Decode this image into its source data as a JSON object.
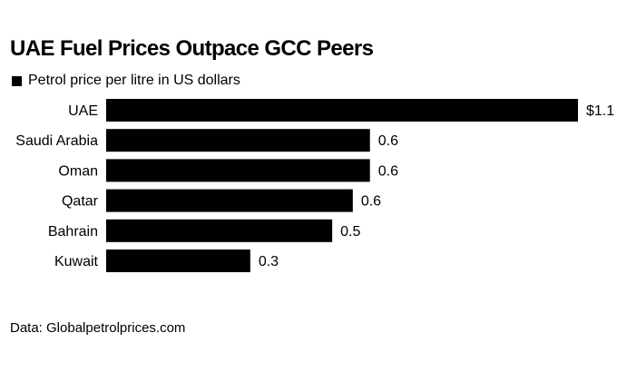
{
  "chart_data": {
    "type": "bar",
    "orientation": "horizontal",
    "title": "UAE Fuel Prices Outpace GCC Peers",
    "legend": [
      {
        "name": "Petrol price per litre in US dollars",
        "color": "#000000"
      }
    ],
    "legend_placement": "top-left",
    "categories": [
      "UAE",
      "Saudi Arabia",
      "Oman",
      "Qatar",
      "Bahrain",
      "Kuwait"
    ],
    "values": [
      1.1,
      0.615,
      0.615,
      0.575,
      0.527,
      0.336
    ],
    "data_labels": [
      "$1.1",
      "0.6",
      "0.6",
      "0.6",
      "0.5",
      "0.3"
    ],
    "xlim": [
      0,
      1.1
    ],
    "grid": false,
    "bar_color": "#000000",
    "source": "Data: Globalpetrolprices.com"
  }
}
